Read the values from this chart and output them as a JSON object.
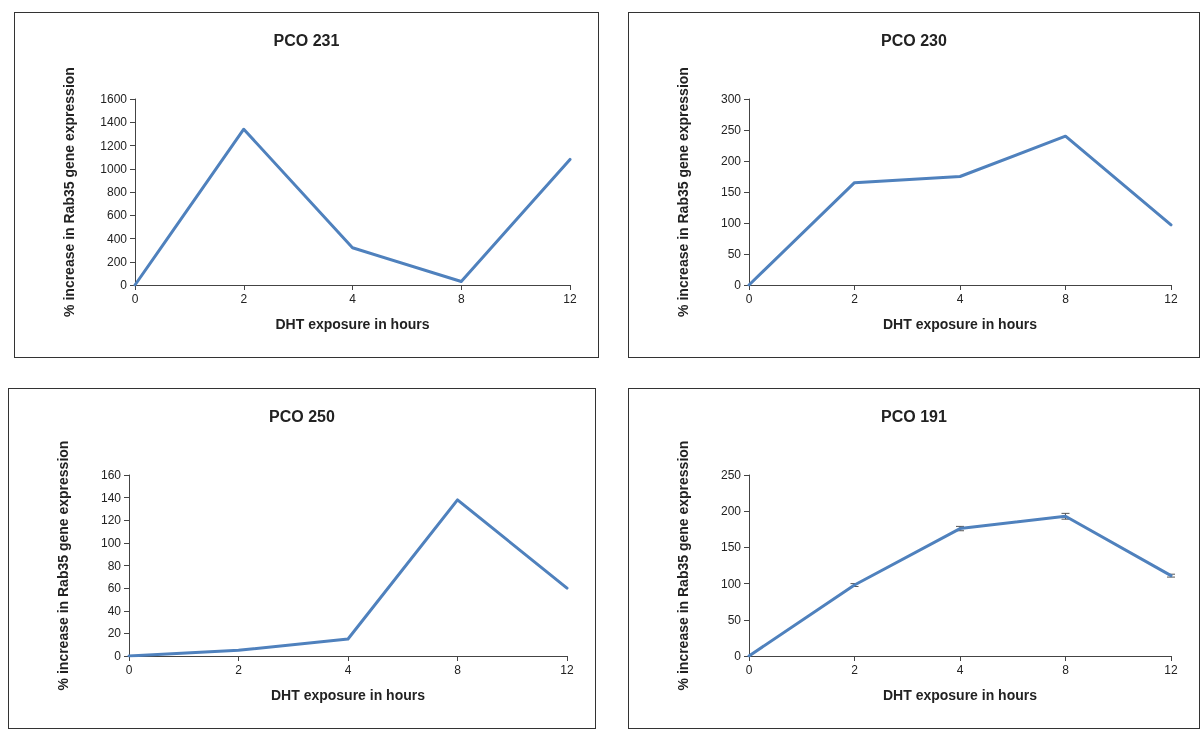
{
  "chart_data": [
    {
      "type": "line",
      "title": "PCO 231",
      "xlabel": "DHT exposure in hours",
      "ylabel": "% increase in Rab35 gene expression",
      "categories": [
        "0",
        "2",
        "4",
        "8",
        "12"
      ],
      "series": [
        {
          "color": "#4f81bd",
          "values": [
            0,
            1340,
            320,
            30,
            1080
          ]
        }
      ],
      "ylim": [
        0,
        1600
      ],
      "yticks": [
        0,
        200,
        400,
        600,
        800,
        1000,
        1200,
        1400,
        1600
      ],
      "grid": false,
      "marker": "none",
      "line_style": "solid"
    },
    {
      "type": "line",
      "title": "PCO 230",
      "xlabel": "DHT exposure in hours",
      "ylabel": "% increase in Rab35 gene expression",
      "categories": [
        "0",
        "2",
        "4",
        "8",
        "12"
      ],
      "series": [
        {
          "color": "#4f81bd",
          "values": [
            0,
            165,
            175,
            240,
            97
          ]
        }
      ],
      "ylim": [
        0,
        300
      ],
      "yticks": [
        0,
        50,
        100,
        150,
        200,
        250,
        300
      ],
      "grid": false,
      "marker": "none",
      "line_style": "solid"
    },
    {
      "type": "line",
      "title": "PCO 250",
      "xlabel": "DHT exposure in hours",
      "ylabel": "% increase in Rab35 gene expression",
      "categories": [
        "0",
        "2",
        "4",
        "8",
        "12"
      ],
      "series": [
        {
          "color": "#4f81bd",
          "values": [
            0,
            5,
            15,
            138,
            60
          ]
        }
      ],
      "ylim": [
        0,
        160
      ],
      "yticks": [
        0,
        20,
        40,
        60,
        80,
        100,
        120,
        140,
        160
      ],
      "grid": false,
      "marker": "none",
      "line_style": "solid"
    },
    {
      "type": "line",
      "title": "PCO 191",
      "xlabel": "DHT exposure in hours",
      "ylabel": "% increase in Rab35 gene expression",
      "categories": [
        "0",
        "2",
        "4",
        "8",
        "12"
      ],
      "series": [
        {
          "color": "#4f81bd",
          "values": [
            0,
            98,
            176,
            193,
            111
          ],
          "errors": [
            null,
            2,
            3,
            4,
            2
          ]
        }
      ],
      "ylim": [
        0,
        250
      ],
      "yticks": [
        0,
        50,
        100,
        150,
        200,
        250
      ],
      "grid": false,
      "marker": "none",
      "line_style": "solid"
    }
  ]
}
